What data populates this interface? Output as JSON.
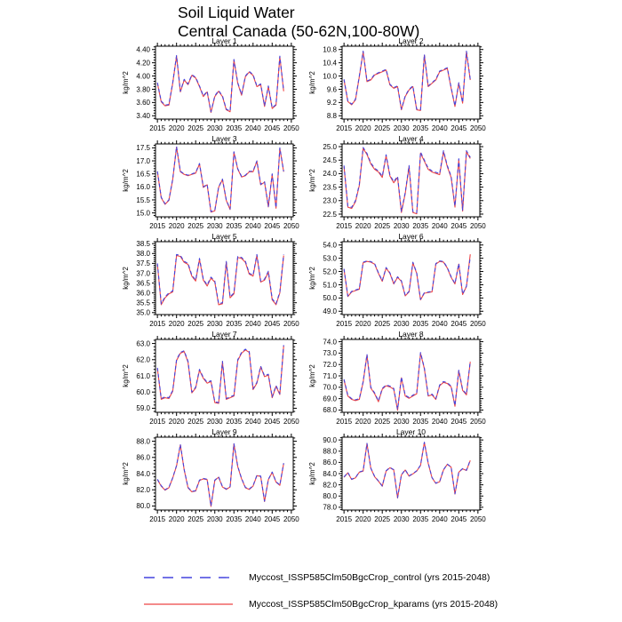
{
  "header": {
    "title_line1": "Soil Liquid Water",
    "title_line2": "Central Canada (50-62N,100-80W)"
  },
  "colors": {
    "control": "#4444dd",
    "kparams": "#ee4444",
    "axis": "#000000"
  },
  "legend": [
    {
      "series": "control",
      "style": "dashed",
      "label": "Myccost_ISSP585Clm50BgcCrop_control (yrs 2015-2048)"
    },
    {
      "series": "kparams",
      "style": "solid",
      "label": "Myccost_ISSP585Clm50BgcCrop_kparams (yrs 2015-2048)"
    }
  ],
  "chart_data": {
    "type": "line",
    "title": "Soil Liquid Water",
    "subtitle": "Central Canada (50-62N,100-80W)",
    "ylabel": "kg/m^2",
    "xlim": [
      2014.5,
      2050.5
    ],
    "x_ticks": [
      2015,
      2020,
      2025,
      2030,
      2035,
      2040,
      2045,
      2050
    ],
    "x": [
      2015,
      2016,
      2017,
      2018,
      2019,
      2020,
      2021,
      2022,
      2023,
      2024,
      2025,
      2026,
      2027,
      2028,
      2029,
      2030,
      2031,
      2032,
      2033,
      2034,
      2035,
      2036,
      2037,
      2038,
      2039,
      2040,
      2041,
      2042,
      2043,
      2044,
      2045,
      2046,
      2047,
      2048
    ],
    "series_names": [
      "Myccost_ISSP585Clm50BgcCrop_control",
      "Myccost_ISSP585Clm50BgcCrop_kparams"
    ],
    "panels": [
      {
        "title": "Layer 1",
        "ylim": [
          3.35,
          4.45
        ],
        "yticks": [
          3.4,
          3.6,
          3.8,
          4.0,
          4.2,
          4.4
        ],
        "ydec": 2,
        "control": [
          3.9,
          3.62,
          3.56,
          3.57,
          3.9,
          4.31,
          3.77,
          3.95,
          3.88,
          4.02,
          3.98,
          3.85,
          3.7,
          3.77,
          3.46,
          3.7,
          3.78,
          3.7,
          3.5,
          3.47,
          4.25,
          3.9,
          3.72,
          4.0,
          4.07,
          4.02,
          3.85,
          3.88,
          3.55,
          3.85,
          3.52,
          3.57,
          4.3,
          3.78
        ],
        "kparams": [
          3.89,
          3.61,
          3.55,
          3.56,
          3.89,
          4.3,
          3.76,
          3.94,
          3.87,
          4.01,
          3.97,
          3.84,
          3.69,
          3.76,
          3.45,
          3.69,
          3.77,
          3.69,
          3.49,
          3.46,
          4.24,
          3.89,
          3.71,
          3.99,
          4.06,
          4.01,
          3.84,
          3.87,
          3.54,
          3.84,
          3.51,
          3.56,
          4.29,
          3.77
        ]
      },
      {
        "title": "Layer 2",
        "ylim": [
          8.7,
          10.9
        ],
        "yticks": [
          8.8,
          9.2,
          9.6,
          10.0,
          10.4,
          10.8
        ],
        "ydec": 1,
        "control": [
          9.9,
          9.25,
          9.15,
          9.3,
          10.0,
          10.75,
          9.85,
          9.9,
          10.05,
          10.1,
          10.15,
          10.2,
          9.75,
          9.65,
          9.7,
          9.0,
          9.4,
          9.6,
          9.7,
          9.0,
          8.98,
          10.65,
          9.7,
          9.8,
          9.9,
          10.15,
          10.2,
          10.25,
          9.65,
          9.1,
          9.8,
          9.2,
          10.75,
          9.9
        ],
        "kparams": [
          9.88,
          9.23,
          9.13,
          9.28,
          9.98,
          10.73,
          9.83,
          9.88,
          10.03,
          10.08,
          10.13,
          10.18,
          9.73,
          9.63,
          9.68,
          8.98,
          9.38,
          9.58,
          9.68,
          8.98,
          8.96,
          10.63,
          9.68,
          9.78,
          9.88,
          10.13,
          10.18,
          10.23,
          9.63,
          9.08,
          9.78,
          9.18,
          10.73,
          9.88
        ]
      },
      {
        "title": "Layer 3",
        "ylim": [
          14.85,
          17.65
        ],
        "yticks": [
          15.0,
          15.5,
          16.0,
          16.5,
          17.0,
          17.5
        ],
        "ydec": 1,
        "control": [
          16.6,
          15.6,
          15.35,
          15.5,
          16.3,
          17.55,
          16.6,
          16.5,
          16.45,
          16.5,
          16.55,
          16.9,
          16.0,
          16.1,
          15.05,
          15.1,
          16.0,
          16.3,
          15.5,
          15.15,
          17.35,
          16.7,
          16.4,
          16.45,
          16.6,
          16.6,
          17.0,
          16.1,
          16.2,
          15.25,
          16.5,
          15.2,
          17.5,
          16.6
        ],
        "kparams": [
          16.58,
          15.58,
          15.33,
          15.48,
          16.28,
          17.53,
          16.58,
          16.48,
          16.43,
          16.48,
          16.53,
          16.88,
          15.98,
          16.08,
          15.03,
          15.08,
          15.98,
          16.28,
          15.48,
          15.13,
          17.33,
          16.68,
          16.38,
          16.43,
          16.58,
          16.58,
          16.98,
          16.08,
          16.18,
          15.23,
          16.48,
          15.18,
          17.48,
          16.58
        ]
      },
      {
        "title": "Layer 4",
        "ylim": [
          22.4,
          25.1
        ],
        "yticks": [
          22.5,
          23.0,
          23.5,
          24.0,
          24.5,
          25.0
        ],
        "ydec": 1,
        "control": [
          24.3,
          22.8,
          22.75,
          23.0,
          23.6,
          24.97,
          24.75,
          24.4,
          24.2,
          24.1,
          23.9,
          24.7,
          23.95,
          23.7,
          23.9,
          22.6,
          23.3,
          24.3,
          22.6,
          22.55,
          24.8,
          24.5,
          24.2,
          24.1,
          24.05,
          24.0,
          24.85,
          24.3,
          23.9,
          22.8,
          24.55,
          22.65,
          24.85,
          24.6
        ],
        "kparams": [
          24.26,
          22.76,
          22.71,
          22.96,
          23.56,
          24.93,
          24.71,
          24.36,
          24.16,
          24.06,
          23.86,
          24.66,
          23.91,
          23.66,
          23.86,
          22.56,
          23.26,
          24.26,
          22.56,
          22.51,
          24.76,
          24.46,
          24.16,
          24.06,
          24.01,
          23.96,
          24.81,
          24.26,
          23.86,
          22.76,
          24.51,
          22.61,
          24.81,
          24.56
        ]
      },
      {
        "title": "Layer 5",
        "ylim": [
          34.9,
          38.6
        ],
        "yticks": [
          35.0,
          35.5,
          36.0,
          36.5,
          37.0,
          37.5,
          38.0,
          38.5
        ],
        "ydec": 1,
        "control": [
          37.5,
          35.45,
          35.8,
          36.0,
          36.1,
          37.95,
          37.9,
          37.6,
          37.5,
          36.9,
          36.65,
          37.75,
          36.7,
          36.4,
          36.8,
          36.6,
          35.45,
          35.5,
          37.6,
          35.8,
          36.0,
          37.85,
          37.8,
          37.6,
          37.0,
          36.9,
          37.95,
          36.6,
          36.7,
          37.1,
          35.7,
          35.45,
          36.05,
          37.95
        ],
        "kparams": [
          37.45,
          35.4,
          35.75,
          35.95,
          36.05,
          37.9,
          37.85,
          37.55,
          37.45,
          36.85,
          36.6,
          37.7,
          36.65,
          36.35,
          36.75,
          36.55,
          35.4,
          35.45,
          37.55,
          35.75,
          35.95,
          37.8,
          37.75,
          37.55,
          36.95,
          36.85,
          37.9,
          36.55,
          36.65,
          37.05,
          35.65,
          35.4,
          36.0,
          37.9
        ]
      },
      {
        "title": "Layer 6",
        "ylim": [
          48.75,
          54.25
        ],
        "yticks": [
          49.0,
          50.0,
          51.0,
          52.0,
          53.0,
          54.0
        ],
        "ydec": 1,
        "control": [
          52.2,
          50.15,
          50.5,
          50.6,
          50.7,
          52.7,
          52.8,
          52.75,
          52.6,
          51.9,
          51.3,
          52.3,
          51.9,
          51.1,
          51.6,
          51.3,
          50.2,
          50.5,
          52.7,
          51.9,
          49.9,
          50.4,
          50.45,
          50.5,
          52.6,
          52.8,
          52.75,
          52.3,
          51.6,
          51.1,
          52.6,
          50.3,
          50.9,
          53.1
        ],
        "kparams": [
          52.16,
          50.11,
          50.46,
          50.56,
          50.66,
          52.66,
          52.76,
          52.71,
          52.56,
          51.86,
          51.26,
          52.26,
          51.86,
          51.06,
          51.56,
          51.26,
          50.16,
          50.46,
          52.66,
          51.86,
          49.86,
          50.36,
          50.41,
          50.46,
          52.56,
          52.76,
          52.71,
          52.26,
          51.56,
          51.06,
          52.56,
          50.26,
          50.86,
          53.3
        ]
      },
      {
        "title": "Layer 7",
        "ylim": [
          58.75,
          63.25
        ],
        "yticks": [
          59.0,
          60.0,
          61.0,
          62.0,
          63.0
        ],
        "ydec": 1,
        "control": [
          61.5,
          59.6,
          59.7,
          59.65,
          60.1,
          62.0,
          62.45,
          62.55,
          61.9,
          60.0,
          60.3,
          61.4,
          60.9,
          60.6,
          60.7,
          59.4,
          59.35,
          61.9,
          59.6,
          59.7,
          59.8,
          62.0,
          62.45,
          62.65,
          62.5,
          60.2,
          60.6,
          61.6,
          61.0,
          61.1,
          59.7,
          60.4,
          59.9,
          62.9
        ],
        "kparams": [
          61.45,
          59.55,
          59.65,
          59.6,
          60.05,
          61.95,
          62.4,
          62.5,
          61.85,
          59.95,
          60.25,
          61.35,
          60.85,
          60.55,
          60.65,
          59.35,
          59.3,
          61.85,
          59.55,
          59.65,
          59.75,
          61.95,
          62.4,
          62.6,
          62.45,
          60.15,
          60.55,
          61.55,
          60.95,
          61.05,
          59.65,
          60.35,
          59.85,
          62.85
        ]
      },
      {
        "title": "Layer 8",
        "ylim": [
          67.8,
          74.2
        ],
        "yticks": [
          68.0,
          69.0,
          70.0,
          71.0,
          72.0,
          73.0,
          74.0
        ],
        "ydec": 1,
        "control": [
          70.7,
          69.3,
          69.0,
          68.9,
          69.0,
          70.5,
          72.9,
          70.0,
          69.5,
          68.8,
          69.9,
          70.2,
          70.1,
          69.9,
          68.05,
          70.9,
          69.3,
          69.1,
          69.3,
          69.5,
          73.05,
          71.7,
          69.3,
          69.4,
          69.0,
          70.2,
          70.5,
          70.4,
          70.1,
          68.4,
          71.5,
          69.8,
          69.4,
          72.3
        ],
        "kparams": [
          70.63,
          69.23,
          68.93,
          68.83,
          68.93,
          70.43,
          72.83,
          69.93,
          69.43,
          68.73,
          69.83,
          70.13,
          70.03,
          69.83,
          67.98,
          70.83,
          69.23,
          69.03,
          69.23,
          69.43,
          72.98,
          71.63,
          69.23,
          69.33,
          68.93,
          70.13,
          70.43,
          70.33,
          70.03,
          68.33,
          71.43,
          69.73,
          69.33,
          72.23
        ]
      },
      {
        "title": "Layer 9",
        "ylim": [
          79.5,
          88.5
        ],
        "yticks": [
          80.0,
          82.0,
          84.0,
          86.0,
          88.0
        ],
        "ydec": 1,
        "control": [
          83.3,
          82.5,
          82.0,
          82.3,
          83.5,
          85.0,
          87.6,
          84.5,
          82.3,
          81.8,
          81.9,
          83.2,
          83.4,
          83.3,
          80.0,
          83.2,
          83.6,
          82.4,
          82.1,
          82.4,
          87.7,
          84.9,
          83.4,
          82.3,
          82.1,
          82.5,
          83.8,
          83.7,
          80.6,
          83.3,
          84.2,
          83.0,
          82.6,
          85.3
        ],
        "kparams": [
          83.25,
          82.45,
          81.95,
          82.25,
          83.45,
          84.95,
          87.55,
          84.45,
          82.25,
          81.75,
          81.85,
          83.15,
          83.35,
          83.25,
          79.95,
          83.15,
          83.55,
          82.35,
          82.05,
          82.35,
          87.65,
          84.85,
          83.35,
          82.25,
          82.05,
          82.45,
          83.75,
          83.65,
          80.55,
          83.25,
          84.15,
          82.95,
          82.55,
          85.25
        ]
      },
      {
        "title": "Layer 10",
        "ylim": [
          77.5,
          90.5
        ],
        "yticks": [
          78.0,
          80.0,
          82.0,
          84.0,
          86.0,
          88.0,
          90.0
        ],
        "ydec": 1,
        "control": [
          83.4,
          84.2,
          83.0,
          83.3,
          84.3,
          84.5,
          89.4,
          85.0,
          83.5,
          82.7,
          81.8,
          84.5,
          85.1,
          84.7,
          79.7,
          83.8,
          84.7,
          83.6,
          84.0,
          84.5,
          85.5,
          89.6,
          85.9,
          83.3,
          82.3,
          82.6,
          84.7,
          85.7,
          85.2,
          80.4,
          84.3,
          84.9,
          84.6,
          86.4
        ],
        "kparams": [
          83.35,
          84.15,
          82.95,
          83.25,
          84.25,
          84.45,
          89.35,
          84.95,
          83.45,
          82.65,
          81.75,
          84.45,
          85.05,
          84.65,
          79.65,
          83.75,
          84.65,
          83.55,
          83.95,
          84.45,
          85.45,
          89.55,
          85.85,
          83.25,
          82.25,
          82.55,
          84.65,
          85.65,
          85.15,
          80.35,
          84.25,
          84.85,
          84.55,
          86.35
        ]
      }
    ]
  }
}
